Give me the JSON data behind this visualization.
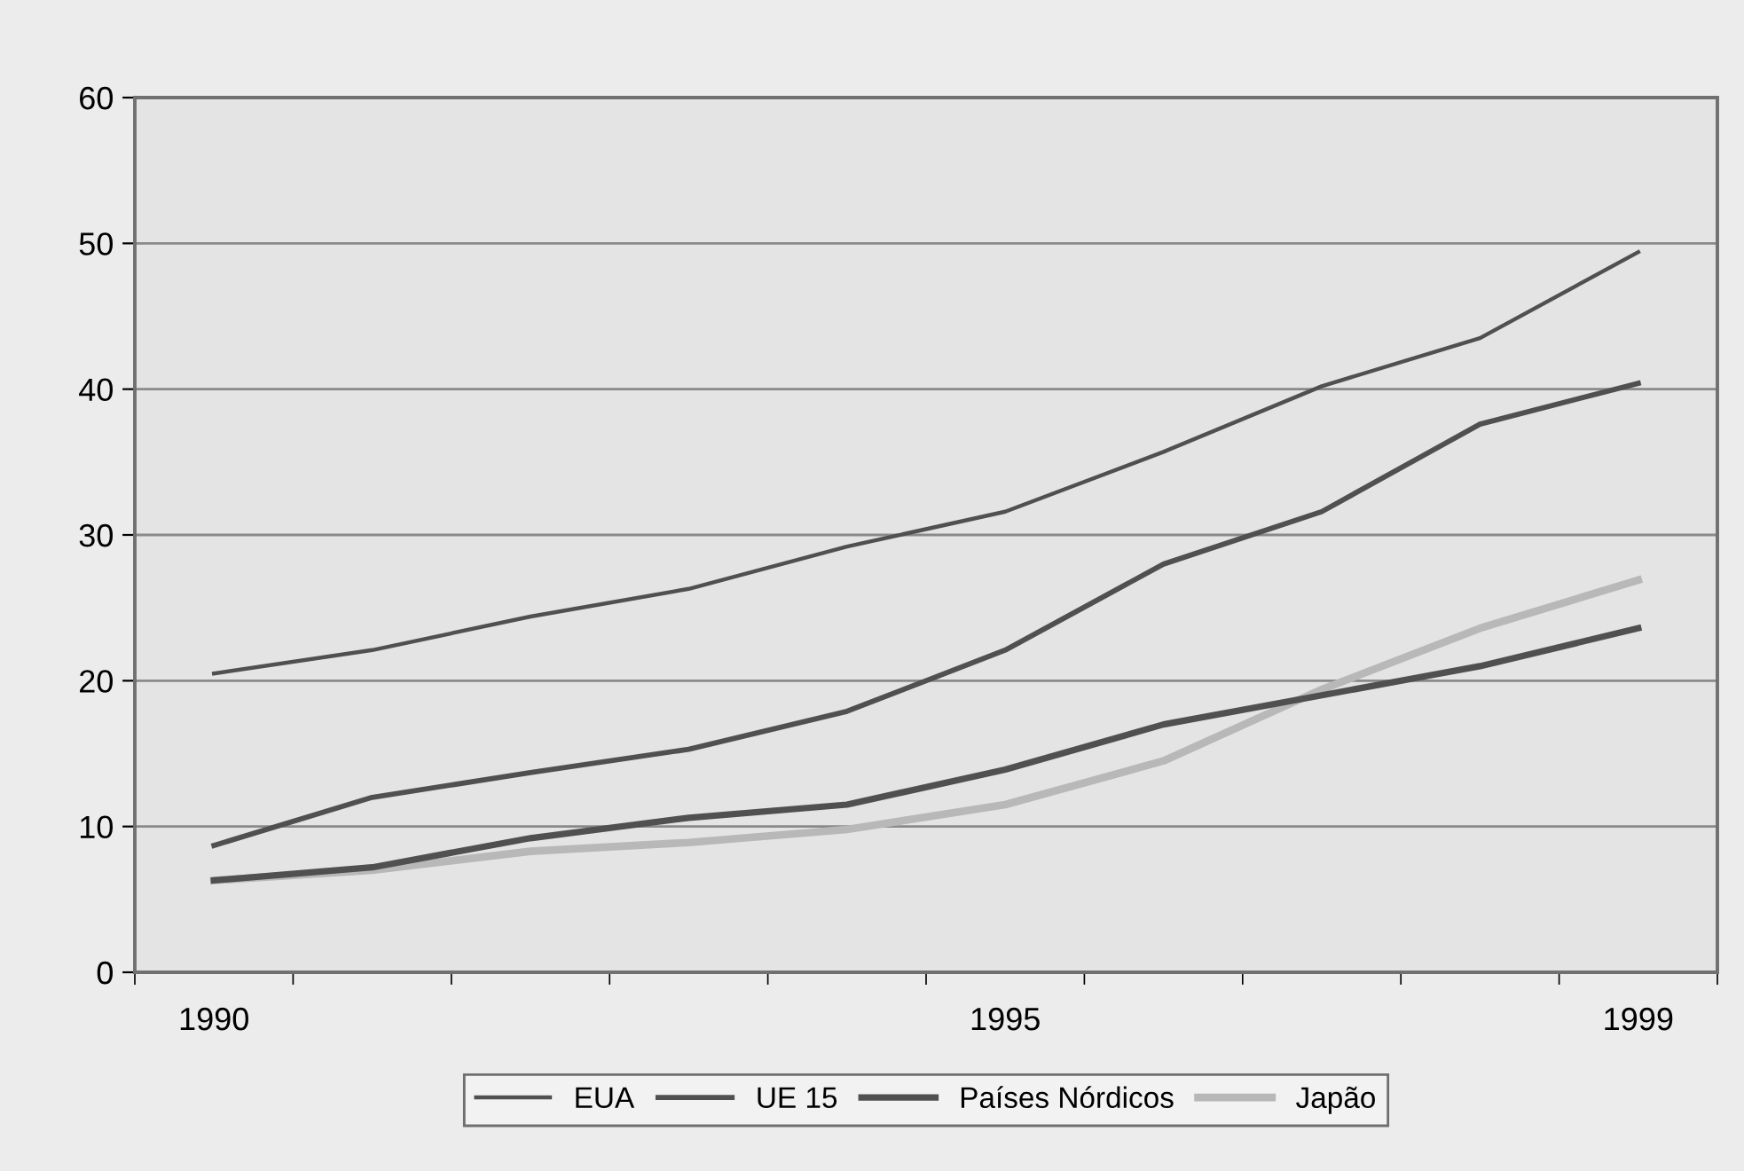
{
  "chart_data": {
    "type": "line",
    "categories": [
      "1990",
      null,
      null,
      null,
      null,
      "1995",
      null,
      null,
      null,
      "1999"
    ],
    "series": [
      {
        "name": "EUA",
        "color": "#505050",
        "values": [
          20.5,
          22.1,
          24.4,
          26.3,
          29.2,
          31.6,
          35.7,
          40.2,
          43.5,
          49.4
        ]
      },
      {
        "name": "UE 15",
        "color": "#505050",
        "values": [
          8.7,
          12.0,
          13.7,
          15.3,
          17.9,
          22.1,
          28.0,
          31.6,
          37.6,
          40.4
        ]
      },
      {
        "name": "Países Nórdicos",
        "color": "#505050",
        "values": [
          6.3,
          7.2,
          9.2,
          10.6,
          11.5,
          13.9,
          17.0,
          19.0,
          21.0,
          23.6
        ]
      },
      {
        "name": "Japão",
        "color": "#b8b8b8",
        "values": [
          6.3,
          7.0,
          8.3,
          8.9,
          9.8,
          11.5,
          14.5,
          19.4,
          23.6,
          26.9
        ]
      }
    ],
    "ylim": [
      0,
      60
    ],
    "yticks": [
      0,
      10,
      20,
      30,
      40,
      50,
      60
    ],
    "grid": "y",
    "legend": "bottom",
    "marker": "none",
    "line_style": "solid"
  }
}
